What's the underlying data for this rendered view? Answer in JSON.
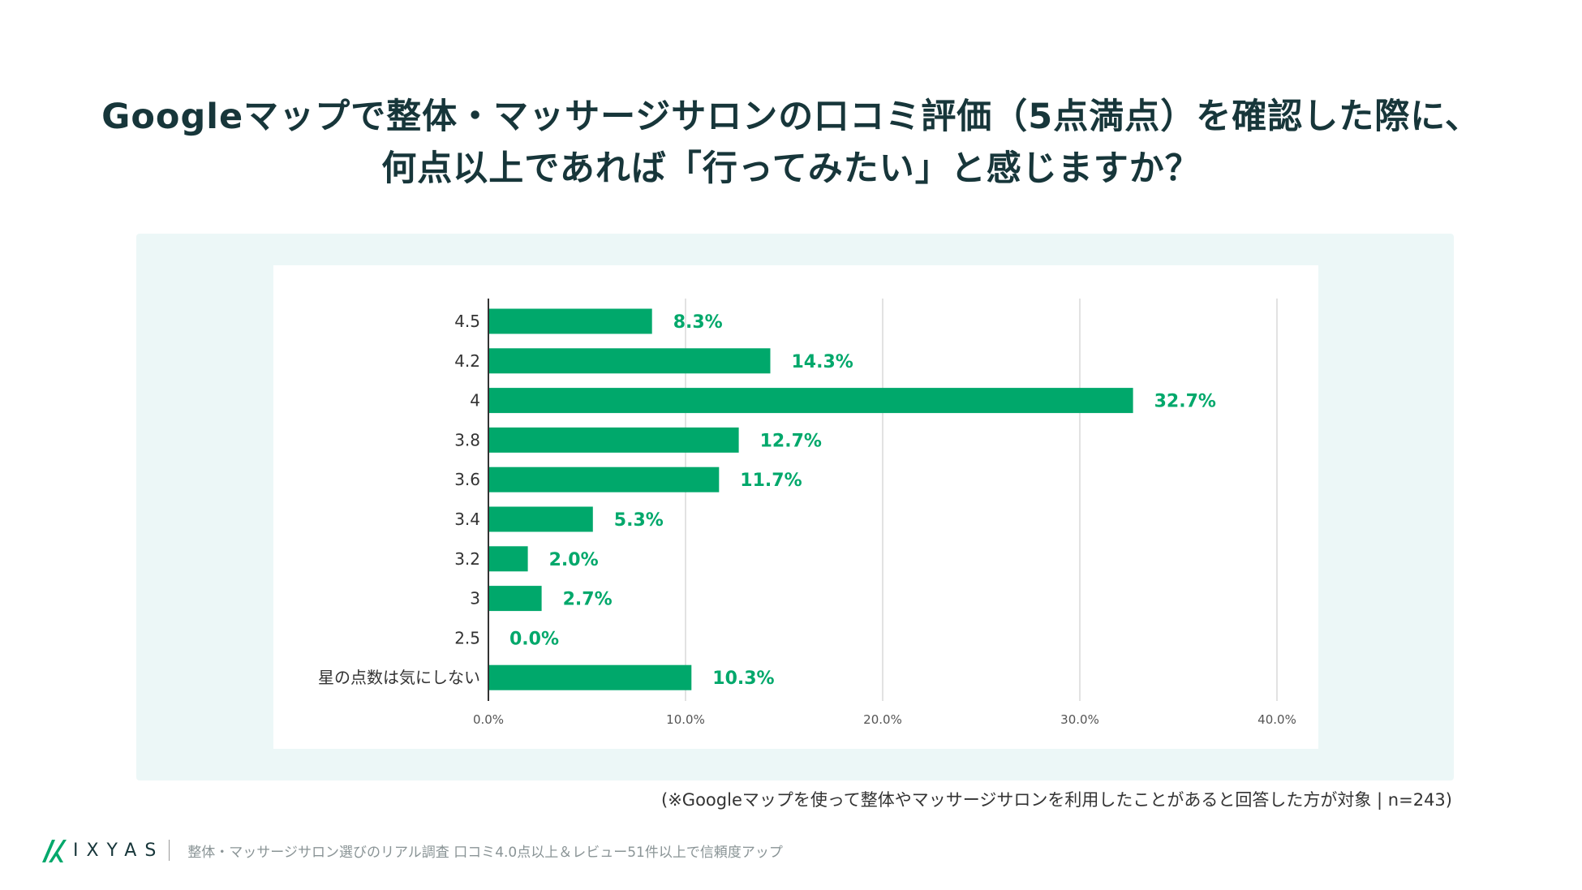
{
  "title": {
    "line1": "Googleマップで整体・マッサージサロンの口コミ評価（5点満点）を確認した際に、",
    "line2": "何点以上であれば「行ってみたい」と感じますか？"
  },
  "colors": {
    "bar": "#00a86b",
    "value_label": "#00a86b",
    "grid": "#d9d9d9",
    "axis": "#333333"
  },
  "chart_data": {
    "type": "bar",
    "orientation": "horizontal",
    "categories": [
      "4.5",
      "4.2",
      "4",
      "3.8",
      "3.6",
      "3.4",
      "3.2",
      "3",
      "2.5",
      "星の点数は気にしない"
    ],
    "values": [
      8.3,
      14.3,
      32.7,
      12.7,
      11.7,
      5.3,
      2.0,
      2.7,
      0.0,
      10.3
    ],
    "value_labels": [
      "8.3%",
      "14.3%",
      "32.7%",
      "12.7%",
      "11.7%",
      "5.3%",
      "2.0%",
      "2.7%",
      "0.0%",
      "10.3%"
    ],
    "xlim": [
      0,
      40
    ],
    "xticks": [
      0,
      10,
      20,
      30,
      40
    ],
    "xtick_labels": [
      "0.0%",
      "10.0%",
      "20.0%",
      "30.0%",
      "40.0%"
    ],
    "grid": true,
    "legend": "none"
  },
  "note": "(※Googleマップを使って整体やマッサージサロンを利用したことがあると回答した方が対象 | n=243)",
  "footer": {
    "logo_icon": "ixyas-logo-icon",
    "brand": "IXYAS",
    "subtitle": "整体・マッサージサロン選びのリアル調査 口コミ4.0点以上＆レビュー51件以上で信頼度アップ"
  }
}
